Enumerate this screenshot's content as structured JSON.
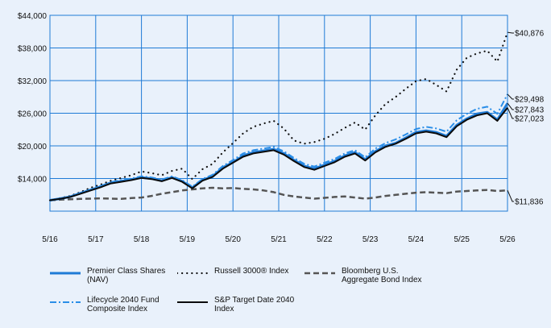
{
  "chart_data": {
    "type": "line",
    "x_ticks": [
      "5/16",
      "5/17",
      "5/18",
      "5/19",
      "5/20",
      "5/21",
      "5/22",
      "5/23",
      "5/24",
      "5/25",
      "5/26"
    ],
    "y_ticks": [
      "$14,000",
      "$20,000",
      "$26,000",
      "$32,000",
      "$38,000",
      "$44,000"
    ],
    "ylim": [
      8000,
      44000
    ],
    "grid": true,
    "series": [
      {
        "name": "Premier Class Shares (NAV)",
        "style": "solid-thick",
        "color": "#1f7bd6",
        "end_label": "$27,843",
        "values": [
          10000,
          10300,
          10650,
          11300,
          11900,
          12500,
          13200,
          13500,
          13800,
          14200,
          14000,
          13600,
          14200,
          13500,
          12300,
          13700,
          14400,
          16000,
          17000,
          18200,
          18800,
          19100,
          19400,
          18600,
          17400,
          16300,
          15800,
          16500,
          17200,
          18200,
          18800,
          17500,
          19000,
          20000,
          20500,
          21500,
          22500,
          22800,
          22500,
          21800,
          23800,
          25000,
          25900,
          26200,
          24800,
          27843
        ]
      },
      {
        "name": "Russell 3000® Index",
        "style": "dotted",
        "color": "#111111",
        "end_label": "$40,876",
        "values": [
          10000,
          10400,
          10800,
          11500,
          12300,
          12900,
          13600,
          14100,
          14600,
          15300,
          15000,
          14600,
          15400,
          15800,
          13900,
          15700,
          16700,
          18800,
          20500,
          22300,
          23500,
          24100,
          24600,
          23200,
          21000,
          20400,
          20700,
          21300,
          22200,
          23300,
          24300,
          23000,
          25600,
          27700,
          29000,
          30500,
          31900,
          32300,
          31200,
          30000,
          34000,
          36200,
          37000,
          37500,
          35500,
          40876
        ]
      },
      {
        "name": "Bloomberg U.S. Aggregate Bond Index",
        "style": "dashed",
        "color": "#555555",
        "end_label": "$11,836",
        "values": [
          10000,
          10100,
          10200,
          10250,
          10300,
          10350,
          10300,
          10250,
          10400,
          10500,
          10800,
          11200,
          11500,
          11800,
          12000,
          12200,
          12300,
          12200,
          12250,
          12100,
          12000,
          11800,
          11500,
          11000,
          10700,
          10500,
          10300,
          10450,
          10600,
          10700,
          10500,
          10300,
          10500,
          10800,
          11000,
          11200,
          11400,
          11500,
          11400,
          11300,
          11600,
          11700,
          11800,
          11900,
          11700,
          11836
        ]
      },
      {
        "name": "Lifecycle 2040 Fund Composite Index",
        "style": "dash-dot",
        "color": "#2a8ee8",
        "end_label": "$29,498",
        "values": [
          10000,
          10300,
          10700,
          11350,
          12000,
          12650,
          13350,
          13700,
          14000,
          14400,
          14200,
          13800,
          14400,
          13700,
          12500,
          13900,
          14700,
          16300,
          17400,
          18600,
          19200,
          19500,
          19800,
          19000,
          17800,
          16700,
          16200,
          16900,
          17600,
          18600,
          19200,
          17900,
          19500,
          20500,
          21200,
          22100,
          23100,
          23500,
          23200,
          22600,
          24700,
          25900,
          26800,
          27200,
          25900,
          29498
        ]
      },
      {
        "name": "S&P Target Date 2040 Index",
        "style": "solid",
        "color": "#0b0b0b",
        "end_label": "$27,023",
        "values": [
          10000,
          10250,
          10600,
          11200,
          11800,
          12400,
          13100,
          13400,
          13700,
          14100,
          13900,
          13500,
          14100,
          13400,
          12200,
          13600,
          14300,
          15800,
          16900,
          18000,
          18600,
          18900,
          19200,
          18400,
          17200,
          16100,
          15600,
          16300,
          17000,
          18000,
          18600,
          17300,
          18800,
          19800,
          20400,
          21300,
          22300,
          22600,
          22300,
          21600,
          23600,
          24800,
          25600,
          26000,
          24600,
          27023
        ]
      }
    ],
    "legend_placement": "bottom"
  }
}
